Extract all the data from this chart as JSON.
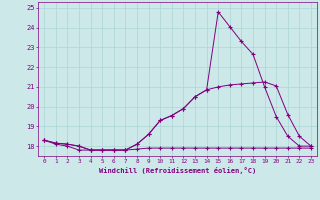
{
  "xlabel": "Windchill (Refroidissement éolien,°C)",
  "bg_color": "#cce8e8",
  "line_color": "#800080",
  "grid_color": "#aad4d4",
  "xlim": [
    -0.5,
    23.5
  ],
  "ylim": [
    17.5,
    25.3
  ],
  "yticks": [
    18,
    19,
    20,
    21,
    22,
    23,
    24,
    25
  ],
  "xticks": [
    0,
    1,
    2,
    3,
    4,
    5,
    6,
    7,
    8,
    9,
    10,
    11,
    12,
    13,
    14,
    15,
    16,
    17,
    18,
    19,
    20,
    21,
    22,
    23
  ],
  "line1_x": [
    0,
    1,
    2,
    3,
    4,
    5,
    6,
    7,
    8,
    9,
    10,
    11,
    12,
    13,
    14,
    15,
    16,
    17,
    18,
    19,
    20,
    21,
    22,
    23
  ],
  "line1_y": [
    18.3,
    18.1,
    18.0,
    17.8,
    17.8,
    17.8,
    17.8,
    17.8,
    17.85,
    17.9,
    17.9,
    17.9,
    17.9,
    17.9,
    17.9,
    17.9,
    17.9,
    17.9,
    17.9,
    17.9,
    17.9,
    17.9,
    17.9,
    17.9
  ],
  "line2_x": [
    0,
    1,
    2,
    3,
    4,
    5,
    6,
    7,
    8,
    9,
    10,
    11,
    12,
    13,
    14,
    15,
    16,
    17,
    18,
    19,
    20,
    21,
    22,
    23
  ],
  "line2_y": [
    18.3,
    18.15,
    18.1,
    18.0,
    17.8,
    17.8,
    17.8,
    17.8,
    18.1,
    18.6,
    19.3,
    19.55,
    19.9,
    20.5,
    20.85,
    21.0,
    21.1,
    21.15,
    21.2,
    21.25,
    21.05,
    19.6,
    18.5,
    18.0
  ],
  "line3_x": [
    0,
    1,
    2,
    3,
    4,
    5,
    6,
    7,
    8,
    9,
    10,
    11,
    12,
    13,
    14,
    15,
    16,
    17,
    18,
    19,
    20,
    21,
    22,
    23
  ],
  "line3_y": [
    18.3,
    18.15,
    18.1,
    18.0,
    17.8,
    17.8,
    17.8,
    17.8,
    18.1,
    18.6,
    19.3,
    19.55,
    19.9,
    20.5,
    20.85,
    24.8,
    24.05,
    23.3,
    22.65,
    21.0,
    19.5,
    18.5,
    18.0,
    18.0
  ]
}
